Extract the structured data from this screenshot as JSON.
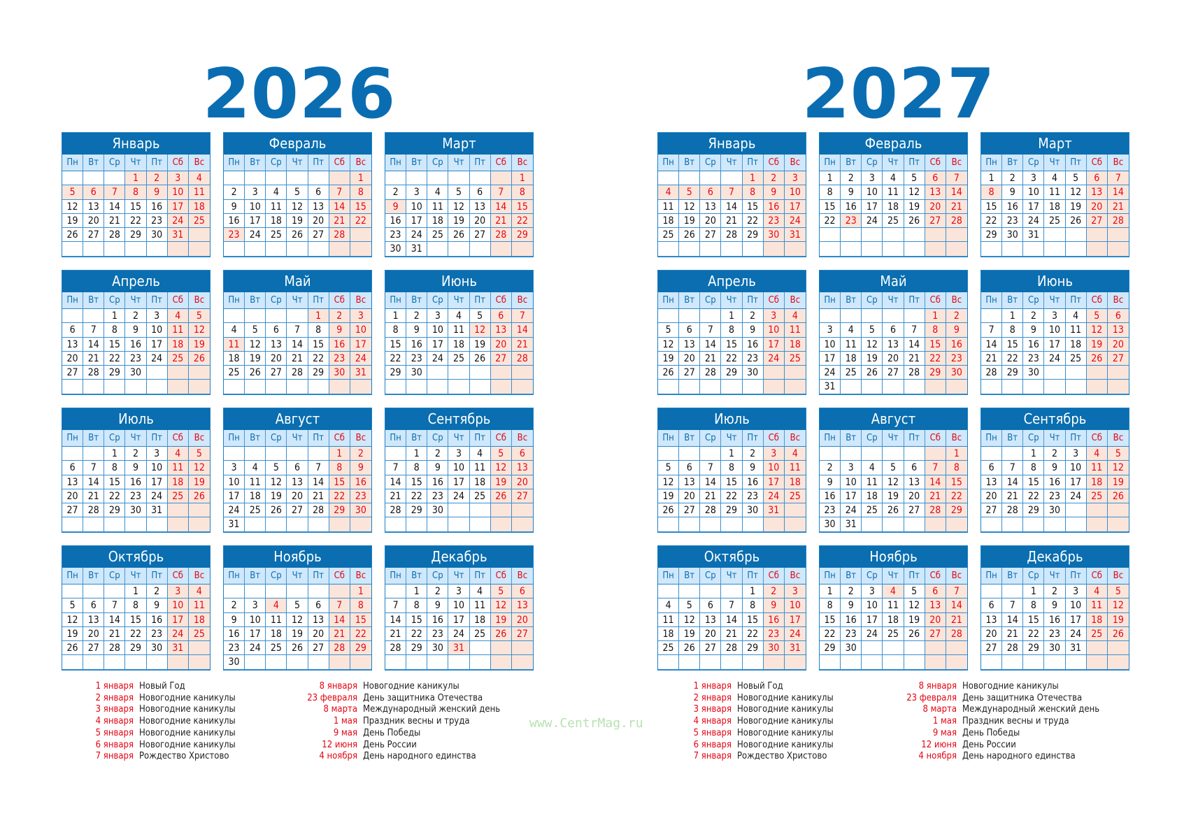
{
  "weekdays": [
    "Пн",
    "Вт",
    "Ср",
    "Чт",
    "Пт",
    "Сб",
    "Вс"
  ],
  "colors": {
    "brand_blue": "#0a6eb0",
    "holiday_red": "#e30613",
    "weekend_shade": "#fbe5da",
    "weekday_header": "#cfe8fb"
  },
  "watermark": "www.CentrMag.ru",
  "years": [
    {
      "year": "2026",
      "months": [
        {
          "name": "Январь",
          "offset": 3,
          "days": 31,
          "holidays": [
            1,
            2,
            5,
            6,
            7,
            8,
            9
          ]
        },
        {
          "name": "Февраль",
          "offset": 6,
          "days": 28,
          "holidays": [
            23
          ]
        },
        {
          "name": "Март",
          "offset": 6,
          "days": 31,
          "holidays": [
            9
          ]
        },
        {
          "name": "Апрель",
          "offset": 2,
          "days": 30,
          "holidays": []
        },
        {
          "name": "Май",
          "offset": 4,
          "days": 31,
          "holidays": [
            1,
            11
          ]
        },
        {
          "name": "Июнь",
          "offset": 0,
          "days": 30,
          "holidays": [
            12
          ]
        },
        {
          "name": "Июль",
          "offset": 2,
          "days": 31,
          "holidays": []
        },
        {
          "name": "Август",
          "offset": 5,
          "days": 31,
          "holidays": []
        },
        {
          "name": "Сентябрь",
          "offset": 1,
          "days": 30,
          "holidays": []
        },
        {
          "name": "Октябрь",
          "offset": 3,
          "days": 31,
          "holidays": []
        },
        {
          "name": "Ноябрь",
          "offset": 6,
          "days": 30,
          "holidays": [
            4
          ]
        },
        {
          "name": "Декабрь",
          "offset": 1,
          "days": 31,
          "holidays": [
            31
          ]
        }
      ]
    },
    {
      "year": "2027",
      "months": [
        {
          "name": "Январь",
          "offset": 4,
          "days": 31,
          "holidays": [
            1,
            4,
            5,
            6,
            7,
            8
          ]
        },
        {
          "name": "Февраль",
          "offset": 0,
          "days": 28,
          "holidays": [
            23
          ]
        },
        {
          "name": "Март",
          "offset": 0,
          "days": 31,
          "holidays": [
            8
          ]
        },
        {
          "name": "Апрель",
          "offset": 3,
          "days": 30,
          "holidays": []
        },
        {
          "name": "Май",
          "offset": 5,
          "days": 31,
          "holidays": []
        },
        {
          "name": "Июнь",
          "offset": 1,
          "days": 30,
          "holidays": []
        },
        {
          "name": "Июль",
          "offset": 3,
          "days": 31,
          "holidays": []
        },
        {
          "name": "Август",
          "offset": 6,
          "days": 31,
          "holidays": []
        },
        {
          "name": "Сентябрь",
          "offset": 2,
          "days": 30,
          "holidays": []
        },
        {
          "name": "Октябрь",
          "offset": 4,
          "days": 31,
          "holidays": []
        },
        {
          "name": "Ноябрь",
          "offset": 0,
          "days": 30,
          "holidays": [
            4
          ]
        },
        {
          "name": "Декабрь",
          "offset": 2,
          "days": 31,
          "holidays": []
        }
      ]
    }
  ],
  "legend": {
    "col1": [
      {
        "date": "1 января",
        "name": "Новый Год"
      },
      {
        "date": "2 января",
        "name": "Новогодние каникулы"
      },
      {
        "date": "3 января",
        "name": "Новогодние каникулы"
      },
      {
        "date": "4 января",
        "name": "Новогодние каникулы"
      },
      {
        "date": "5 января",
        "name": "Новогодние каникулы"
      },
      {
        "date": "6 января",
        "name": "Новогодние каникулы"
      },
      {
        "date": "7 января",
        "name": "Рождество Христово"
      }
    ],
    "col2": [
      {
        "date": "8 января",
        "name": "Новогодние каникулы"
      },
      {
        "date": "23 февраля",
        "name": "День защитника Отечества"
      },
      {
        "date": "8 марта",
        "name": "Международный женский день"
      },
      {
        "date": "1 мая",
        "name": "Праздник весны и труда"
      },
      {
        "date": "9 мая",
        "name": "День Победы"
      },
      {
        "date": "12 июня",
        "name": "День России"
      },
      {
        "date": "4 ноября",
        "name": "День народного единства"
      }
    ]
  }
}
